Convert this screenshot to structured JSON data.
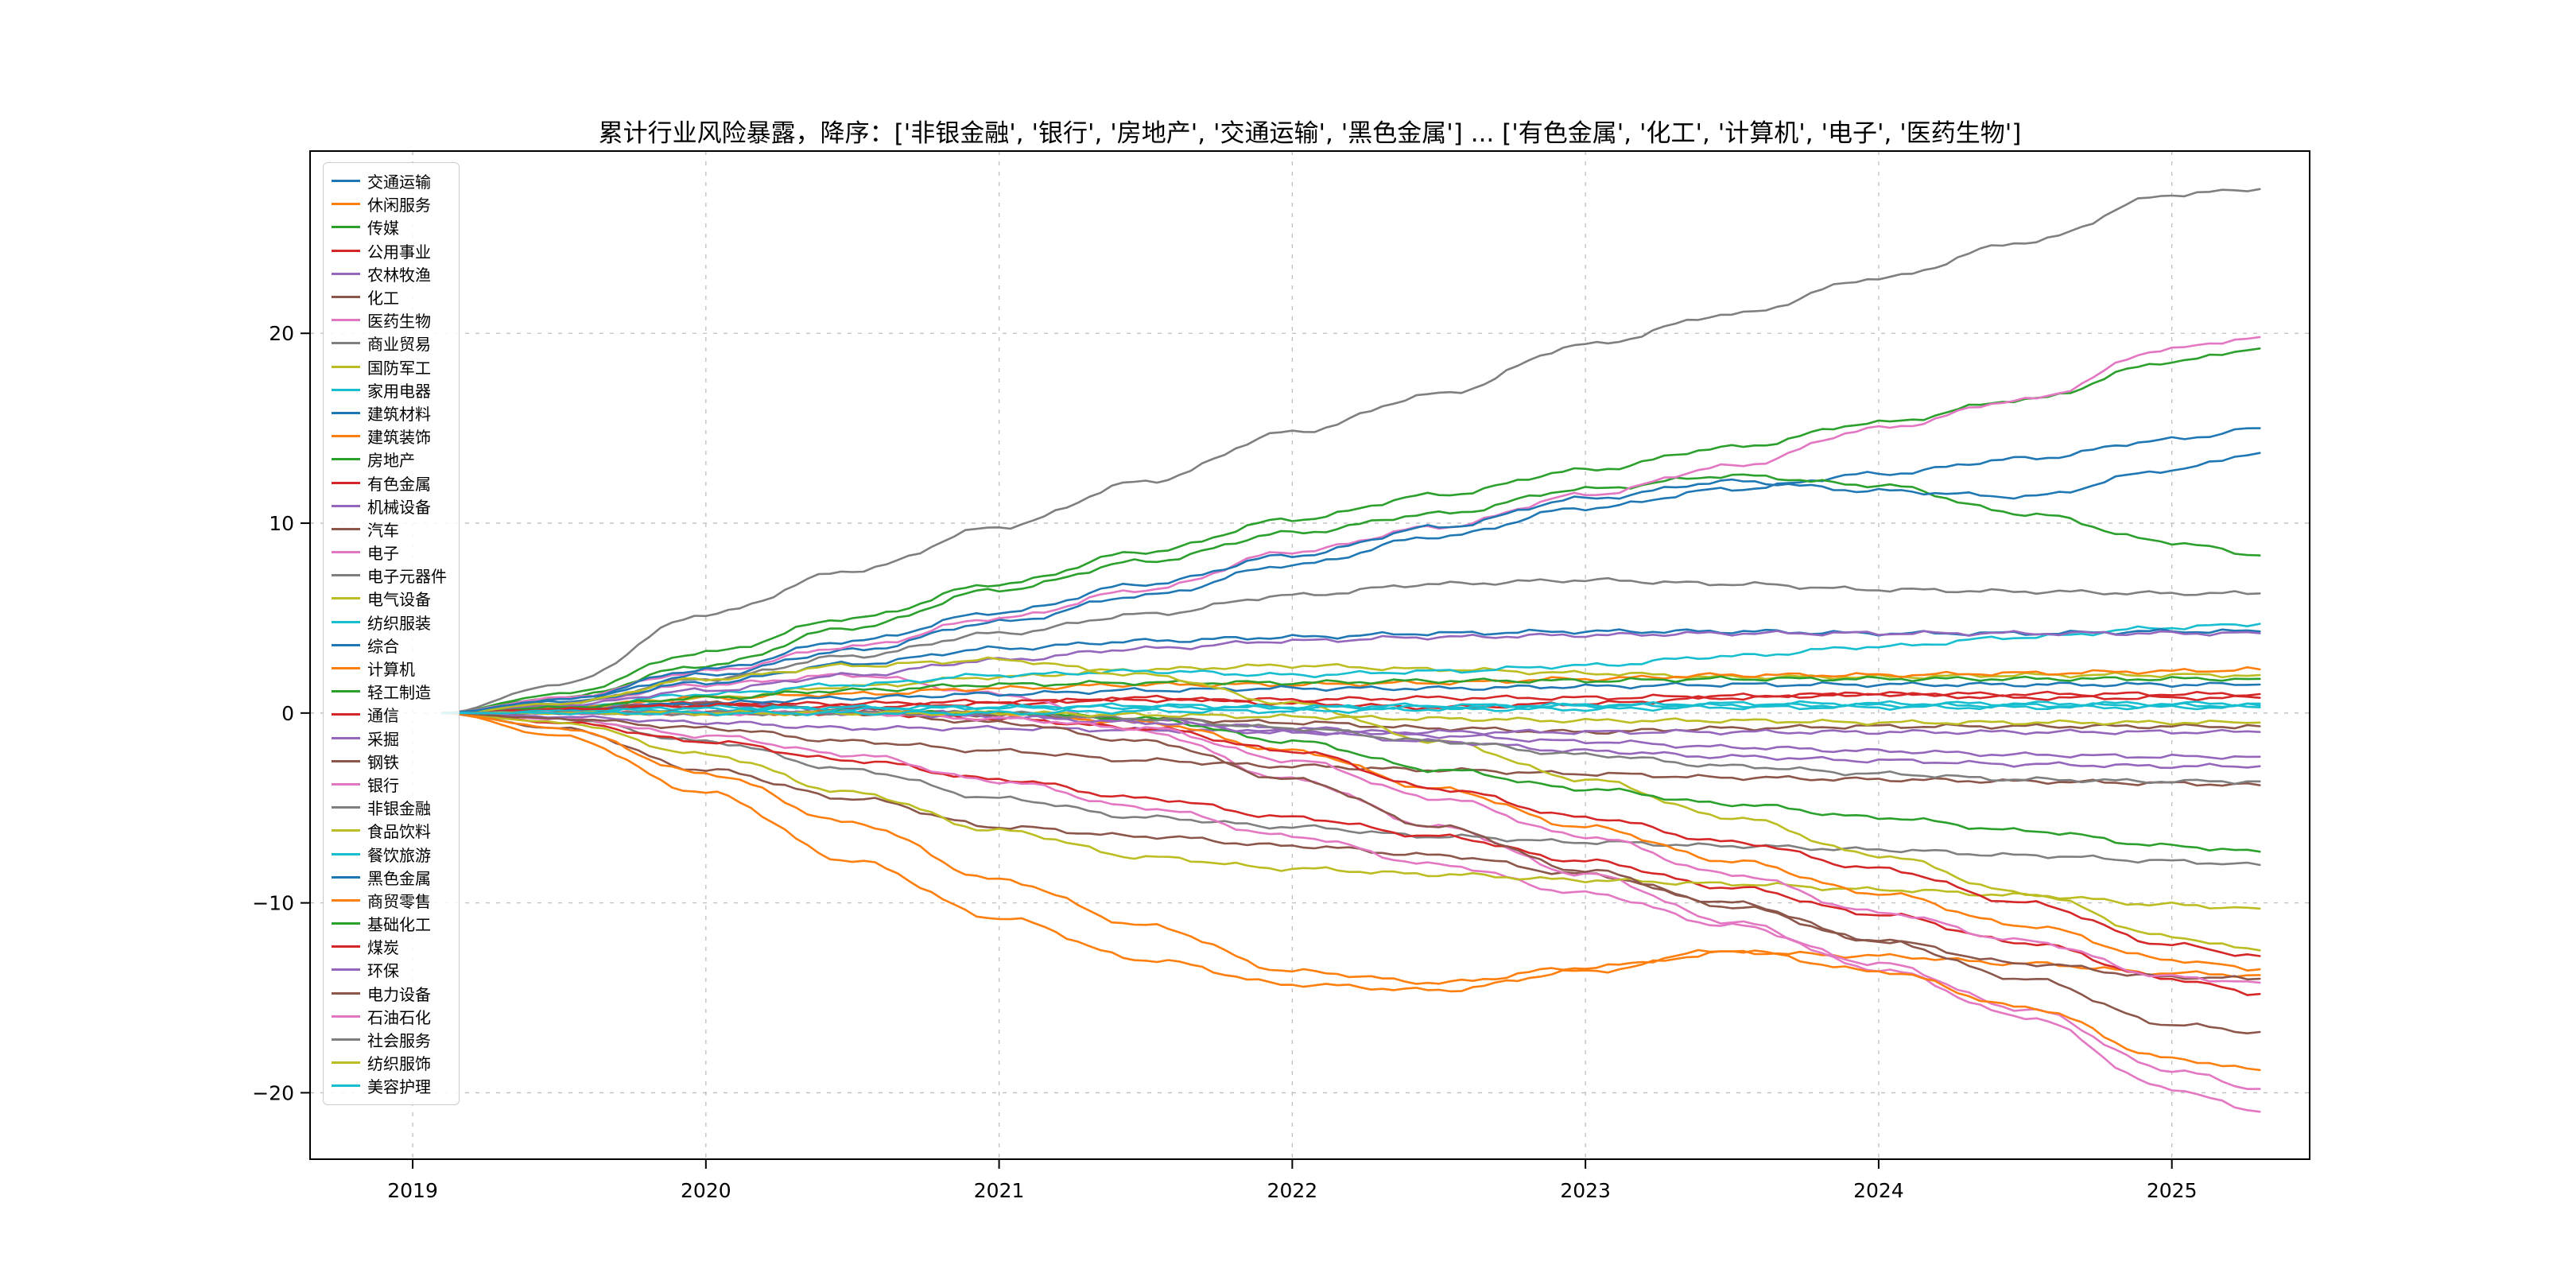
{
  "chart_data": {
    "type": "line",
    "title": "累计行业风险暴露，降序：['非银金融', '银行', '房地产', '交通运输', '黑色金属'] ... ['有色金属', '化工', '计算机', '电子', '医药生物']",
    "grid": true,
    "legend_position": "upper-left",
    "xlabel": "",
    "ylabel": "",
    "xlim": [
      2018.65,
      2025.47
    ],
    "ylim": [
      -23.5,
      29.6
    ],
    "x_ticks": [
      {
        "value": 2019,
        "label": "2019"
      },
      {
        "value": 2020,
        "label": "2020"
      },
      {
        "value": 2021,
        "label": "2021"
      },
      {
        "value": 2022,
        "label": "2022"
      },
      {
        "value": 2023,
        "label": "2023"
      },
      {
        "value": 2024,
        "label": "2024"
      },
      {
        "value": 2025,
        "label": "2025"
      }
    ],
    "y_ticks": [
      {
        "value": -20,
        "label": "−20"
      },
      {
        "value": -10,
        "label": "−10"
      },
      {
        "value": 0,
        "label": "0"
      },
      {
        "value": 10,
        "label": "10"
      },
      {
        "value": 20,
        "label": "20"
      }
    ],
    "x": [
      2019.1,
      2019.5,
      2020.0,
      2020.5,
      2021.0,
      2021.5,
      2022.0,
      2022.5,
      2023.0,
      2023.5,
      2024.0,
      2024.5,
      2025.0,
      2025.3
    ],
    "series": [
      {
        "name": "交通运输",
        "color": "#1f77b4",
        "values": [
          0,
          0.6,
          2.0,
          3.3,
          4.8,
          6.2,
          7.8,
          9.3,
          10.8,
          11.8,
          12.6,
          13.4,
          14.4,
          15.0
        ]
      },
      {
        "name": "休闲服务",
        "color": "#ff7f0e",
        "values": [
          0,
          -1.2,
          -4.2,
          -7.8,
          -10.8,
          -13.0,
          -14.3,
          -14.6,
          -13.6,
          -12.6,
          -12.8,
          -13.2,
          -13.7,
          -13.8
        ]
      },
      {
        "name": "传媒",
        "color": "#2ca02c",
        "values": [
          0,
          0.8,
          2.5,
          4.5,
          6.5,
          8.0,
          9.5,
          10.5,
          11.8,
          12.5,
          12.0,
          10.5,
          9.0,
          8.3
        ]
      },
      {
        "name": "公用事业",
        "color": "#d62728",
        "values": [
          0,
          0.2,
          0.5,
          0.3,
          0.5,
          0.8,
          0.5,
          0.3,
          0.5,
          0.8,
          1.0,
          0.8,
          0.8,
          0.8
        ]
      },
      {
        "name": "农林牧渔",
        "color": "#9467bd",
        "values": [
          0,
          0.3,
          0.5,
          0.2,
          -0.1,
          -0.4,
          -0.8,
          -1.2,
          -1.5,
          -1.8,
          -2.0,
          -2.2,
          -2.3,
          -2.3
        ]
      },
      {
        "name": "化工",
        "color": "#8c564b",
        "values": [
          0,
          -0.8,
          -3.0,
          -4.5,
          -6.0,
          -6.5,
          -7.0,
          -7.5,
          -8.5,
          -10.0,
          -12.0,
          -14.0,
          -16.4,
          -16.8
        ]
      },
      {
        "name": "医药生物",
        "color": "#e377c2",
        "values": [
          0,
          0.5,
          1.5,
          2.0,
          1.0,
          -1.0,
          -3.5,
          -6.0,
          -8.5,
          -11.0,
          -13.5,
          -16.0,
          -19.8,
          -21.0
        ]
      },
      {
        "name": "商业贸易",
        "color": "#7f7f7f",
        "values": [
          0,
          -0.3,
          -1.5,
          -3.0,
          -4.5,
          -5.5,
          -6.0,
          -6.5,
          -6.8,
          -7.0,
          -7.2,
          -7.5,
          -7.8,
          -8.0
        ]
      },
      {
        "name": "国防军工",
        "color": "#bcbd22",
        "values": [
          0,
          0.3,
          0.8,
          1.4,
          1.9,
          2.3,
          2.5,
          2.3,
          2.1,
          1.9,
          1.9,
          2.0,
          2.0,
          2.0
        ]
      },
      {
        "name": "家用电器",
        "color": "#17becf",
        "values": [
          0,
          0.3,
          1.0,
          1.5,
          2.0,
          2.2,
          2.0,
          2.2,
          2.5,
          3.0,
          3.5,
          4.0,
          4.5,
          4.7
        ]
      },
      {
        "name": "建筑材料",
        "color": "#1f77b4",
        "values": [
          0,
          0.5,
          1.6,
          2.6,
          3.4,
          3.8,
          4.0,
          4.2,
          4.3,
          4.3,
          4.2,
          4.2,
          4.3,
          4.3
        ]
      },
      {
        "name": "建筑装饰",
        "color": "#ff7f0e",
        "values": [
          0,
          0.3,
          0.8,
          1.0,
          1.3,
          1.5,
          1.5,
          1.6,
          1.8,
          2.0,
          2.0,
          2.1,
          2.2,
          2.3
        ]
      },
      {
        "name": "房地产",
        "color": "#2ca02c",
        "values": [
          0,
          1.0,
          3.2,
          5.0,
          6.8,
          8.5,
          10.2,
          11.5,
          12.8,
          14.0,
          15.3,
          16.5,
          18.5,
          19.2
        ]
      },
      {
        "name": "有色金属",
        "color": "#d62728",
        "values": [
          0,
          -0.5,
          -1.5,
          -2.5,
          -3.5,
          -4.5,
          -5.5,
          -6.5,
          -7.8,
          -9.2,
          -10.6,
          -12.1,
          -14.0,
          -14.8
        ]
      },
      {
        "name": "机械设备",
        "color": "#9467bd",
        "values": [
          0,
          0.4,
          1.2,
          2.0,
          2.8,
          3.4,
          3.8,
          4.0,
          4.1,
          4.2,
          4.2,
          4.2,
          4.2,
          4.2
        ]
      },
      {
        "name": "汽车",
        "color": "#8c564b",
        "values": [
          0,
          0.2,
          0.5,
          0.2,
          -0.1,
          -0.3,
          -0.5,
          -0.8,
          -1.0,
          -0.8,
          -0.7,
          -0.7,
          -0.7,
          -0.7
        ]
      },
      {
        "name": "电子",
        "color": "#e377c2",
        "values": [
          0,
          -0.3,
          -1.2,
          -2.2,
          -3.6,
          -5.0,
          -6.5,
          -8.0,
          -9.5,
          -11.2,
          -13.2,
          -15.6,
          -18.8,
          -19.8
        ]
      },
      {
        "name": "电子元器件",
        "color": "#7f7f7f",
        "values": [
          0,
          0.5,
          1.8,
          3.0,
          4.2,
          5.2,
          6.2,
          6.8,
          7.0,
          6.8,
          6.5,
          6.4,
          6.3,
          6.3
        ]
      },
      {
        "name": "电气设备",
        "color": "#bcbd22",
        "values": [
          0,
          -0.5,
          -2.2,
          -4.2,
          -6.2,
          -7.6,
          -8.2,
          -8.5,
          -8.8,
          -9.0,
          -9.3,
          -9.6,
          -10.1,
          -10.3
        ]
      },
      {
        "name": "纺织服装",
        "color": "#17becf",
        "values": [
          0,
          0.1,
          0.3,
          0.2,
          0.3,
          0.4,
          0.3,
          0.3,
          0.4,
          0.5,
          0.5,
          0.5,
          0.5,
          0.5
        ]
      },
      {
        "name": "综合",
        "color": "#1f77b4",
        "values": [
          0,
          0.2,
          0.5,
          0.8,
          1.0,
          1.2,
          1.3,
          1.3,
          1.4,
          1.5,
          1.5,
          1.5,
          1.5,
          1.5
        ]
      },
      {
        "name": "计算机",
        "color": "#ff7f0e",
        "values": [
          0,
          -0.8,
          -3.2,
          -5.8,
          -8.8,
          -11.2,
          -13.6,
          -14.2,
          -13.4,
          -12.5,
          -13.6,
          -15.5,
          -18.2,
          -18.8
        ]
      },
      {
        "name": "轻工制造",
        "color": "#2ca02c",
        "values": [
          0,
          0.3,
          0.8,
          1.2,
          1.5,
          1.6,
          1.6,
          1.7,
          1.7,
          1.8,
          1.8,
          1.8,
          1.8,
          1.8
        ]
      },
      {
        "name": "通信",
        "color": "#d62728",
        "values": [
          0,
          0.2,
          0.4,
          0.5,
          0.6,
          0.7,
          0.7,
          0.8,
          0.8,
          0.9,
          1.0,
          1.0,
          1.0,
          1.0
        ]
      },
      {
        "name": "采掘",
        "color": "#9467bd",
        "values": [
          0,
          -0.2,
          -0.5,
          -0.8,
          -0.8,
          -0.9,
          -1.0,
          -1.0,
          -1.0,
          -1.0,
          -1.0,
          -1.0,
          -1.0,
          -1.0
        ]
      },
      {
        "name": "钢铁",
        "color": "#8c564b",
        "values": [
          0,
          -0.3,
          -0.8,
          -1.5,
          -2.0,
          -2.5,
          -2.8,
          -3.0,
          -3.2,
          -3.4,
          -3.5,
          -3.6,
          -3.7,
          -3.8
        ]
      },
      {
        "name": "银行",
        "color": "#e377c2",
        "values": [
          0,
          0.8,
          2.2,
          3.5,
          5.0,
          6.5,
          8.5,
          9.8,
          11.5,
          13.0,
          15.0,
          16.5,
          19.2,
          19.8
        ]
      },
      {
        "name": "非银金融",
        "color": "#7f7f7f",
        "values": [
          0,
          1.5,
          5.2,
          7.5,
          9.8,
          12.2,
          14.8,
          16.8,
          19.4,
          21.0,
          22.9,
          24.8,
          27.3,
          27.6
        ]
      },
      {
        "name": "食品饮料",
        "color": "#bcbd22",
        "values": [
          0,
          0.5,
          1.8,
          2.5,
          2.8,
          2.0,
          0.5,
          -1.5,
          -3.5,
          -5.5,
          -7.5,
          -9.5,
          -11.8,
          -12.5
        ]
      },
      {
        "name": "餐饮旅游",
        "color": "#17becf",
        "values": [
          0,
          0.1,
          0.2,
          0.3,
          0.3,
          0.3,
          0.3,
          0.4,
          0.4,
          0.4,
          0.4,
          0.4,
          0.4,
          0.4
        ]
      },
      {
        "name": "黑色金属",
        "color": "#1f77b4",
        "values": [
          0,
          0.7,
          2.3,
          3.8,
          5.3,
          6.8,
          8.3,
          9.8,
          11.3,
          12.2,
          11.7,
          11.4,
          12.8,
          13.7
        ]
      },
      {
        "name": "商贸零售",
        "color": "#ff7f0e",
        "values": [
          0,
          0,
          0,
          0,
          0,
          -0.5,
          -2.0,
          -4.0,
          -6.0,
          -7.8,
          -9.5,
          -11.2,
          -13.0,
          -13.5
        ]
      },
      {
        "name": "基础化工",
        "color": "#2ca02c",
        "values": [
          0,
          0,
          0,
          0,
          0,
          -0.3,
          -1.5,
          -3.0,
          -4.0,
          -4.8,
          -5.5,
          -6.2,
          -7.0,
          -7.3
        ]
      },
      {
        "name": "煤炭",
        "color": "#d62728",
        "values": [
          0,
          0,
          0,
          0,
          -0.3,
          -0.8,
          -2.0,
          -4.0,
          -5.5,
          -6.8,
          -8.2,
          -10.0,
          -12.2,
          -12.8
        ]
      },
      {
        "name": "环保",
        "color": "#9467bd",
        "values": [
          0,
          0,
          0,
          0,
          -0.2,
          -0.5,
          -1.0,
          -1.5,
          -2.0,
          -2.3,
          -2.5,
          -2.7,
          -2.8,
          -2.8
        ]
      },
      {
        "name": "电力设备",
        "color": "#8c564b",
        "values": [
          0,
          0,
          0,
          0,
          -0.5,
          -1.5,
          -3.5,
          -6.0,
          -8.3,
          -10.2,
          -12.0,
          -13.2,
          -13.9,
          -14.0
        ]
      },
      {
        "name": "石油石化",
        "color": "#e377c2",
        "values": [
          0,
          0,
          0,
          0,
          -0.3,
          -0.8,
          -2.5,
          -4.5,
          -6.5,
          -8.5,
          -10.5,
          -12.0,
          -13.9,
          -14.2
        ]
      },
      {
        "name": "社会服务",
        "color": "#7f7f7f",
        "values": [
          0,
          0,
          0,
          0,
          0,
          -0.3,
          -0.8,
          -1.5,
          -2.2,
          -2.8,
          -3.2,
          -3.5,
          -3.6,
          -3.6
        ]
      },
      {
        "name": "纺织服饰",
        "color": "#bcbd22",
        "values": [
          0,
          0,
          0,
          0,
          0,
          -0.1,
          -0.2,
          -0.3,
          -0.4,
          -0.4,
          -0.5,
          -0.5,
          -0.5,
          -0.5
        ]
      },
      {
        "name": "美容护理",
        "color": "#17becf",
        "values": [
          0,
          0,
          0,
          0,
          0,
          0.1,
          0.1,
          0.2,
          0.2,
          0.3,
          0.3,
          0.3,
          0.3,
          0.3
        ]
      }
    ]
  }
}
